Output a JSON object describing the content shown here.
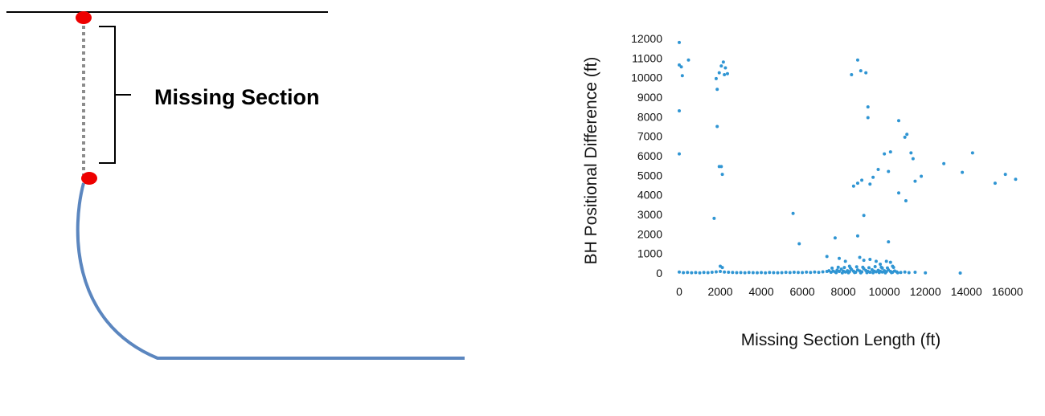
{
  "diagram": {
    "label": "Missing Section",
    "colors": {
      "surface_line": "#000000",
      "marker": "#ee0000",
      "missing_dotted": "#8c8c8c",
      "wellbore": "#5b86bf",
      "bracket": "#000000"
    }
  },
  "chart_data": {
    "type": "scatter",
    "xlabel": "Missing Section Length (ft)",
    "ylabel": "BH Positional Difference (ft)",
    "xlim": [
      -500,
      17000
    ],
    "ylim": [
      -300,
      12000
    ],
    "xticks": [
      0,
      2000,
      4000,
      6000,
      8000,
      10000,
      12000,
      14000,
      16000
    ],
    "yticks": [
      0,
      1000,
      2000,
      3000,
      4000,
      5000,
      6000,
      7000,
      8000,
      9000,
      10000,
      11000,
      12000
    ],
    "grid": false,
    "legend": "none",
    "color": "#2f95d3",
    "points": [
      [
        0,
        11800
      ],
      [
        0,
        10650
      ],
      [
        100,
        10550
      ],
      [
        150,
        10100
      ],
      [
        450,
        10900
      ],
      [
        0,
        8300
      ],
      [
        0,
        6100
      ],
      [
        1800,
        9950
      ],
      [
        1850,
        9400
      ],
      [
        1950,
        10250
      ],
      [
        2050,
        10600
      ],
      [
        2150,
        10800
      ],
      [
        2250,
        10500
      ],
      [
        2350,
        10200
      ],
      [
        2200,
        10150
      ],
      [
        1850,
        7500
      ],
      [
        1950,
        5450
      ],
      [
        2050,
        5450
      ],
      [
        2100,
        5050
      ],
      [
        1700,
        2800
      ],
      [
        8400,
        10150
      ],
      [
        8700,
        10900
      ],
      [
        8850,
        10350
      ],
      [
        9100,
        10250
      ],
      [
        9200,
        8500
      ],
      [
        9200,
        7950
      ],
      [
        9000,
        2950
      ],
      [
        8700,
        1900
      ],
      [
        7600,
        1800
      ],
      [
        5550,
        3050
      ],
      [
        5850,
        1500
      ],
      [
        10700,
        7800
      ],
      [
        11100,
        7100
      ],
      [
        11000,
        6950
      ],
      [
        11300,
        6150
      ],
      [
        11400,
        5850
      ],
      [
        12900,
        5600
      ],
      [
        14300,
        6150
      ],
      [
        13800,
        5150
      ],
      [
        15900,
        5050
      ],
      [
        16400,
        4800
      ],
      [
        15400,
        4600
      ],
      [
        11800,
        4950
      ],
      [
        11500,
        4700
      ],
      [
        10700,
        4100
      ],
      [
        11050,
        3700
      ],
      [
        10300,
        6200
      ],
      [
        10000,
        6100
      ],
      [
        10200,
        5200
      ],
      [
        9700,
        5300
      ],
      [
        9450,
        4900
      ],
      [
        9300,
        4550
      ],
      [
        8900,
        4750
      ],
      [
        8700,
        4600
      ],
      [
        8500,
        4450
      ],
      [
        10200,
        1600
      ],
      [
        13700,
        0
      ],
      [
        8800,
        800
      ],
      [
        9000,
        650
      ],
      [
        9300,
        700
      ],
      [
        9600,
        600
      ],
      [
        10100,
        600
      ],
      [
        10300,
        550
      ],
      [
        7800,
        750
      ],
      [
        8100,
        600
      ],
      [
        9800,
        450
      ],
      [
        10400,
        350
      ],
      [
        8300,
        350
      ],
      [
        2000,
        350
      ],
      [
        2100,
        280
      ],
      [
        7200,
        850
      ],
      [
        9900,
        250
      ],
      [
        0,
        50
      ],
      [
        200,
        20
      ],
      [
        400,
        30
      ],
      [
        600,
        15
      ],
      [
        800,
        25
      ],
      [
        1000,
        10
      ],
      [
        1200,
        30
      ],
      [
        1400,
        20
      ],
      [
        1600,
        40
      ],
      [
        1800,
        60
      ],
      [
        2000,
        80
      ],
      [
        2200,
        50
      ],
      [
        2400,
        40
      ],
      [
        2600,
        30
      ],
      [
        2800,
        20
      ],
      [
        3000,
        25
      ],
      [
        3200,
        15
      ],
      [
        3400,
        30
      ],
      [
        3600,
        20
      ],
      [
        3800,
        15
      ],
      [
        4000,
        25
      ],
      [
        4200,
        10
      ],
      [
        4400,
        30
      ],
      [
        4600,
        20
      ],
      [
        4800,
        15
      ],
      [
        5000,
        20
      ],
      [
        5200,
        35
      ],
      [
        5400,
        25
      ],
      [
        5600,
        40
      ],
      [
        5800,
        30
      ],
      [
        6000,
        25
      ],
      [
        6200,
        45
      ],
      [
        6400,
        30
      ],
      [
        6600,
        50
      ],
      [
        6800,
        35
      ],
      [
        7000,
        60
      ],
      [
        7200,
        80
      ],
      [
        7300,
        120
      ],
      [
        7400,
        40
      ],
      [
        7500,
        100
      ],
      [
        7600,
        60
      ],
      [
        7700,
        150
      ],
      [
        7800,
        80
      ],
      [
        7900,
        200
      ],
      [
        8000,
        100
      ],
      [
        8100,
        50
      ],
      [
        8200,
        120
      ],
      [
        8300,
        70
      ],
      [
        8400,
        180
      ],
      [
        8500,
        90
      ],
      [
        8600,
        40
      ],
      [
        8700,
        160
      ],
      [
        8800,
        110
      ],
      [
        8900,
        60
      ],
      [
        9000,
        220
      ],
      [
        9100,
        130
      ],
      [
        9200,
        80
      ],
      [
        9300,
        40
      ],
      [
        9400,
        170
      ],
      [
        9500,
        100
      ],
      [
        9600,
        60
      ],
      [
        9700,
        140
      ],
      [
        9800,
        90
      ],
      [
        9900,
        50
      ],
      [
        10000,
        120
      ],
      [
        10100,
        70
      ],
      [
        10200,
        160
      ],
      [
        10300,
        80
      ],
      [
        10400,
        40
      ],
      [
        10500,
        110
      ],
      [
        10600,
        60
      ],
      [
        10800,
        30
      ],
      [
        11000,
        50
      ],
      [
        11200,
        20
      ],
      [
        11500,
        40
      ],
      [
        12000,
        10
      ],
      [
        7450,
        250
      ],
      [
        7750,
        300
      ],
      [
        8050,
        280
      ],
      [
        8350,
        250
      ],
      [
        8650,
        320
      ],
      [
        8950,
        300
      ],
      [
        9250,
        270
      ],
      [
        9550,
        330
      ],
      [
        9850,
        300
      ],
      [
        10150,
        260
      ],
      [
        10450,
        290
      ],
      [
        7650,
        20
      ],
      [
        7950,
        10
      ],
      [
        8250,
        15
      ],
      [
        8550,
        25
      ],
      [
        8850,
        10
      ],
      [
        9150,
        20
      ],
      [
        9450,
        15
      ],
      [
        9750,
        25
      ],
      [
        10050,
        10
      ],
      [
        10350,
        20
      ],
      [
        10650,
        15
      ]
    ]
  }
}
